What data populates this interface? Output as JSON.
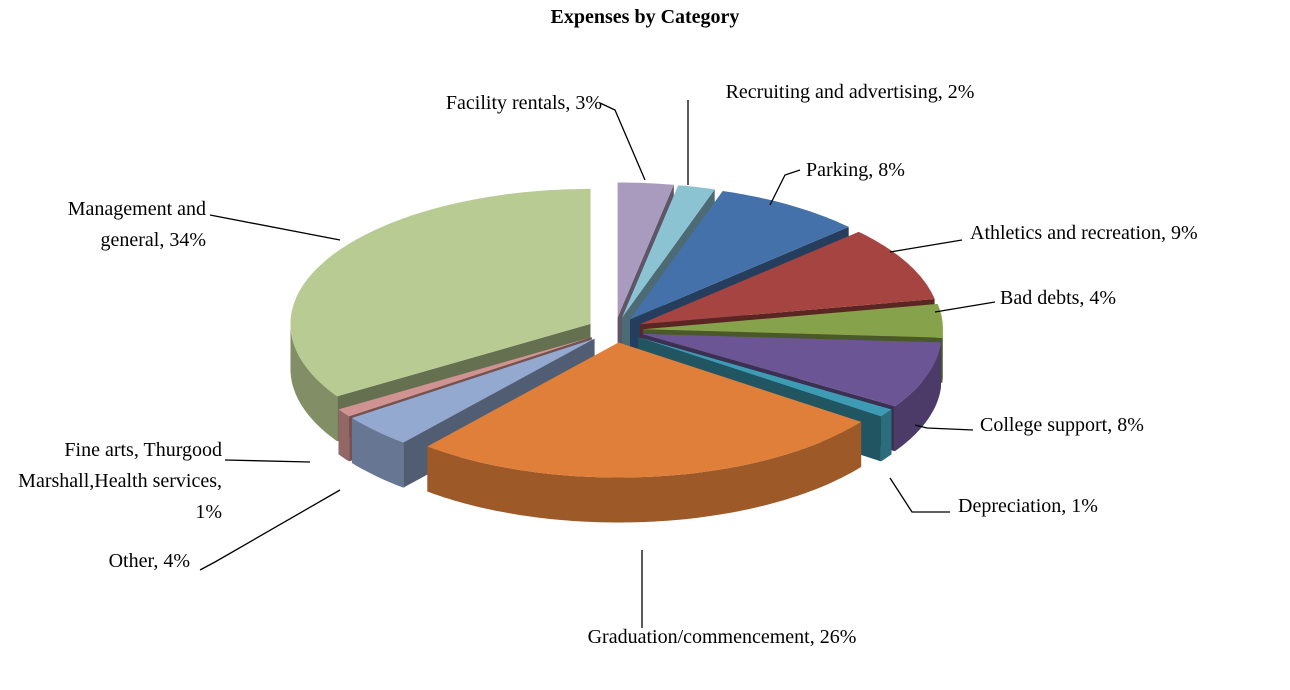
{
  "chart_data": {
    "type": "pie3d",
    "title": "Expenses by Category",
    "categories": [
      "Facility rentals, 3%",
      "Recruiting and advertising, 2%",
      "Parking, 8%",
      "Athletics and recreation, 9%",
      "Bad debts, 4%",
      "College support, 8%",
      "Depreciation, 1%",
      "Graduation/commencement, 26%",
      "Other, 4%",
      "Fine arts, Thurgood Marshall,Health services, 1%",
      "Management and general, 34%"
    ],
    "values": [
      3,
      2,
      8,
      9,
      4,
      8,
      1,
      26,
      4,
      1,
      34
    ],
    "colors": [
      "#a99bbd",
      "#8cc3d3",
      "#4471a9",
      "#a64442",
      "#86a24a",
      "#6c5595",
      "#3d9bb3",
      "#e07f39",
      "#93a9d0",
      "#d19391",
      "#b8cb92"
    ]
  }
}
